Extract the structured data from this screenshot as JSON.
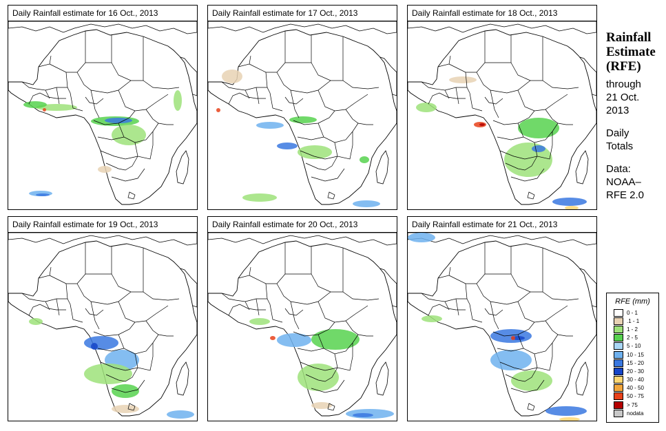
{
  "panels": [
    {
      "title": "Daily Rainfall estimate for  16 Oct., 2013"
    },
    {
      "title": "Daily Rainfall estimate for  17 Oct., 2013"
    },
    {
      "title": "Daily Rainfall estimate for  18 Oct., 2013"
    },
    {
      "title": "Daily Rainfall estimate for  19 Oct., 2013"
    },
    {
      "title": "Daily Rainfall estimate for  20 Oct., 2013"
    },
    {
      "title": "Daily Rainfall estimate for  21 Oct., 2013"
    }
  ],
  "side": {
    "heading": [
      "Rainfall",
      "Estimate",
      "(RFE)"
    ],
    "through": "through",
    "date_line1": "21 Oct.",
    "date_line2": "2013",
    "totals_line1": "Daily",
    "totals_line2": "Totals",
    "data_line1": "Data:",
    "data_line2": "NOAA–",
    "data_line3": "RFE 2.0"
  },
  "legend": {
    "title": "RFE (mm)",
    "items": [
      {
        "label": "0 - 1",
        "color": "#ffffff"
      },
      {
        "label": ".1 - 1",
        "color": "#e8d2b4"
      },
      {
        "label": "1 - 2",
        "color": "#9ee27a"
      },
      {
        "label": "2 - 5",
        "color": "#57d24f"
      },
      {
        "label": "5 - 10",
        "color": "#a9d6f5"
      },
      {
        "label": "10 - 15",
        "color": "#6fb1ee"
      },
      {
        "label": "15 - 20",
        "color": "#3a78e0"
      },
      {
        "label": "20 - 30",
        "color": "#1646c8"
      },
      {
        "label": "30 - 40",
        "color": "#ffd773"
      },
      {
        "label": "40 - 50",
        "color": "#f2a63c"
      },
      {
        "label": "50 - 75",
        "color": "#e8421b"
      },
      {
        "label": "> 75",
        "color": "#b40000"
      },
      {
        "label": "nodata",
        "color": "#c8c8c8"
      }
    ]
  }
}
